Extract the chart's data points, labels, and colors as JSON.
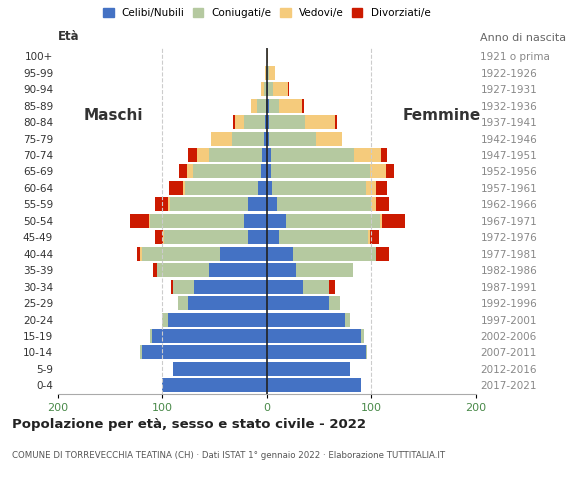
{
  "age_groups": [
    "0-4",
    "5-9",
    "10-14",
    "15-19",
    "20-24",
    "25-29",
    "30-34",
    "35-39",
    "40-44",
    "45-49",
    "50-54",
    "55-59",
    "60-64",
    "65-69",
    "70-74",
    "75-79",
    "80-84",
    "85-89",
    "90-94",
    "95-99",
    "100+"
  ],
  "birth_years": [
    "2017-2021",
    "2012-2016",
    "2007-2011",
    "2002-2006",
    "1997-2001",
    "1992-1996",
    "1987-1991",
    "1982-1986",
    "1977-1981",
    "1972-1976",
    "1967-1971",
    "1962-1966",
    "1957-1961",
    "1952-1956",
    "1947-1951",
    "1942-1946",
    "1937-1941",
    "1932-1936",
    "1927-1931",
    "1922-1926",
    "1921 o prima"
  ],
  "colors": {
    "celibe": "#4472c4",
    "coniugato": "#b5c9a0",
    "vedovo": "#f5cb7c",
    "divorziato": "#cc1a00"
  },
  "males": {
    "celibe": [
      100,
      90,
      120,
      110,
      95,
      75,
      70,
      55,
      45,
      18,
      22,
      18,
      8,
      6,
      5,
      3,
      2,
      1,
      0,
      0,
      0
    ],
    "coniugato": [
      0,
      0,
      1,
      2,
      5,
      10,
      20,
      50,
      75,
      80,
      90,
      75,
      70,
      65,
      50,
      30,
      20,
      8,
      3,
      1,
      0
    ],
    "vedovo": [
      0,
      0,
      0,
      0,
      0,
      0,
      0,
      0,
      1,
      1,
      1,
      2,
      2,
      5,
      12,
      20,
      8,
      6,
      3,
      1,
      0
    ],
    "divorziato": [
      0,
      0,
      0,
      0,
      0,
      0,
      2,
      4,
      3,
      8,
      18,
      12,
      14,
      8,
      8,
      0,
      2,
      0,
      0,
      0,
      0
    ]
  },
  "females": {
    "celibe": [
      90,
      80,
      95,
      90,
      75,
      60,
      35,
      28,
      25,
      12,
      18,
      10,
      5,
      4,
      4,
      2,
      2,
      2,
      1,
      0,
      0
    ],
    "coniugato": [
      0,
      0,
      1,
      3,
      5,
      10,
      25,
      55,
      80,
      85,
      90,
      90,
      90,
      95,
      80,
      45,
      35,
      10,
      5,
      2,
      0
    ],
    "vedovo": [
      0,
      0,
      0,
      0,
      0,
      0,
      0,
      0,
      0,
      2,
      2,
      5,
      10,
      15,
      25,
      25,
      28,
      22,
      14,
      6,
      1
    ],
    "divorziato": [
      0,
      0,
      0,
      0,
      0,
      0,
      5,
      0,
      12,
      8,
      22,
      12,
      10,
      8,
      6,
      0,
      2,
      2,
      1,
      0,
      0
    ]
  },
  "title": "Popolazione per età, sesso e stato civile - 2022",
  "subtitle": "COMUNE DI TORREVECCHIA TEATINA (CH) · Dati ISTAT 1° gennaio 2022 · Elaborazione TUTTITALIA.IT",
  "ylabel_left": "Età",
  "ylabel_right": "Anno di nascita",
  "label_maschi": "Maschi",
  "label_femmine": "Femmine",
  "xlim": 200,
  "background_color": "#ffffff",
  "grid_color": "#cccccc",
  "legend_labels": [
    "Celibi/Nubili",
    "Coniugati/e",
    "Vedovi/e",
    "Divorziati/e"
  ]
}
